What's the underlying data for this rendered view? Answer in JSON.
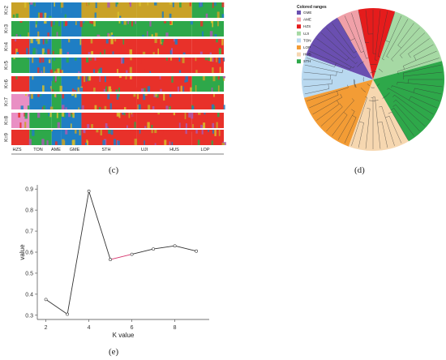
{
  "panels": {
    "c": "(c)",
    "d": "(d)",
    "e": "(e)"
  },
  "structure": {
    "k_labels": [
      "K=2",
      "K=3",
      "K=4",
      "K=5",
      "K=6",
      "K=7",
      "K=8",
      "K=9"
    ],
    "populations": [
      "HZS",
      "TON",
      "AME",
      "GME",
      "STH",
      "UJI",
      "HUS",
      "LOP"
    ]
  },
  "tree": {
    "legend_title": "Colored ranges",
    "groups": [
      {
        "name": "GME",
        "color": "#6a4fb0"
      },
      {
        "name": "AME",
        "color": "#f0a0a8"
      },
      {
        "name": "HZS",
        "color": "#e51c1c"
      },
      {
        "name": "UJI",
        "color": "#a6d9a4"
      },
      {
        "name": "TON",
        "color": "#b9d9f0"
      },
      {
        "name": "LOP",
        "color": "#f39c35"
      },
      {
        "name": "HUS",
        "color": "#f6d7b0"
      },
      {
        "name": "STH",
        "color": "#2ea84a"
      }
    ]
  },
  "chart_data": {
    "type": "line",
    "title": "",
    "xlabel": "K value",
    "ylabel": "value",
    "x": [
      2,
      3,
      4,
      5,
      6,
      7,
      8,
      9
    ],
    "y": [
      0.375,
      0.305,
      0.89,
      0.565,
      0.59,
      0.615,
      0.63,
      0.605
    ],
    "xlim": [
      1.6,
      9.6
    ],
    "ylim": [
      0.28,
      0.92
    ],
    "xticks": [
      "2",
      "4",
      "6",
      "8"
    ],
    "yticks": [
      "0.3",
      "0.4",
      "0.5",
      "0.6",
      "0.7",
      "0.8",
      "0.9"
    ],
    "line_color": "#333333",
    "highlight_color": "#d6336c"
  }
}
